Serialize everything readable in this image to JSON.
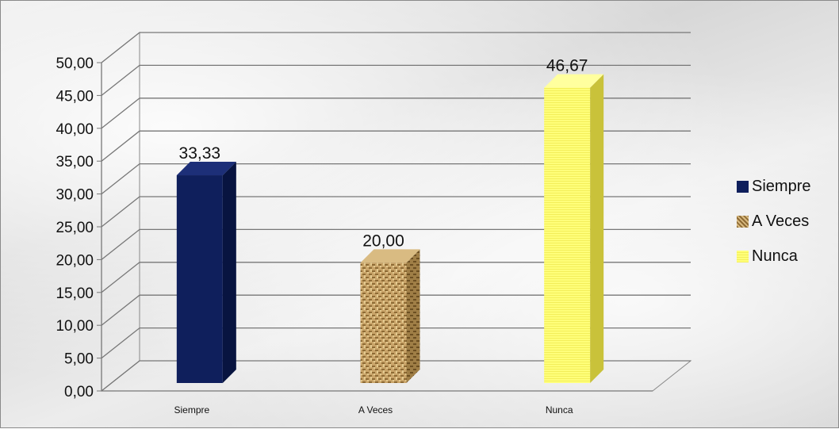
{
  "chart_data": {
    "type": "bar",
    "title": "",
    "xlabel": "",
    "ylabel": "",
    "categories": [
      "Siempre",
      "A Veces",
      "Nunca"
    ],
    "values": [
      33.33,
      20.0,
      46.67
    ],
    "data_labels": [
      "33,33",
      "20,00",
      "46,67"
    ],
    "ylim": [
      0,
      50
    ],
    "ytick_labels": [
      "0,00",
      "5,00",
      "10,00",
      "15,00",
      "20,00",
      "25,00",
      "30,00",
      "35,00",
      "40,00",
      "45,00",
      "50,00"
    ],
    "grid": true,
    "style": "3d-column",
    "legend_position": "right",
    "legend": [
      "Siempre",
      "A Veces",
      "Nunca"
    ],
    "series_colors": [
      "#0f1f5c",
      "#b9955a",
      "#ffff73"
    ]
  }
}
